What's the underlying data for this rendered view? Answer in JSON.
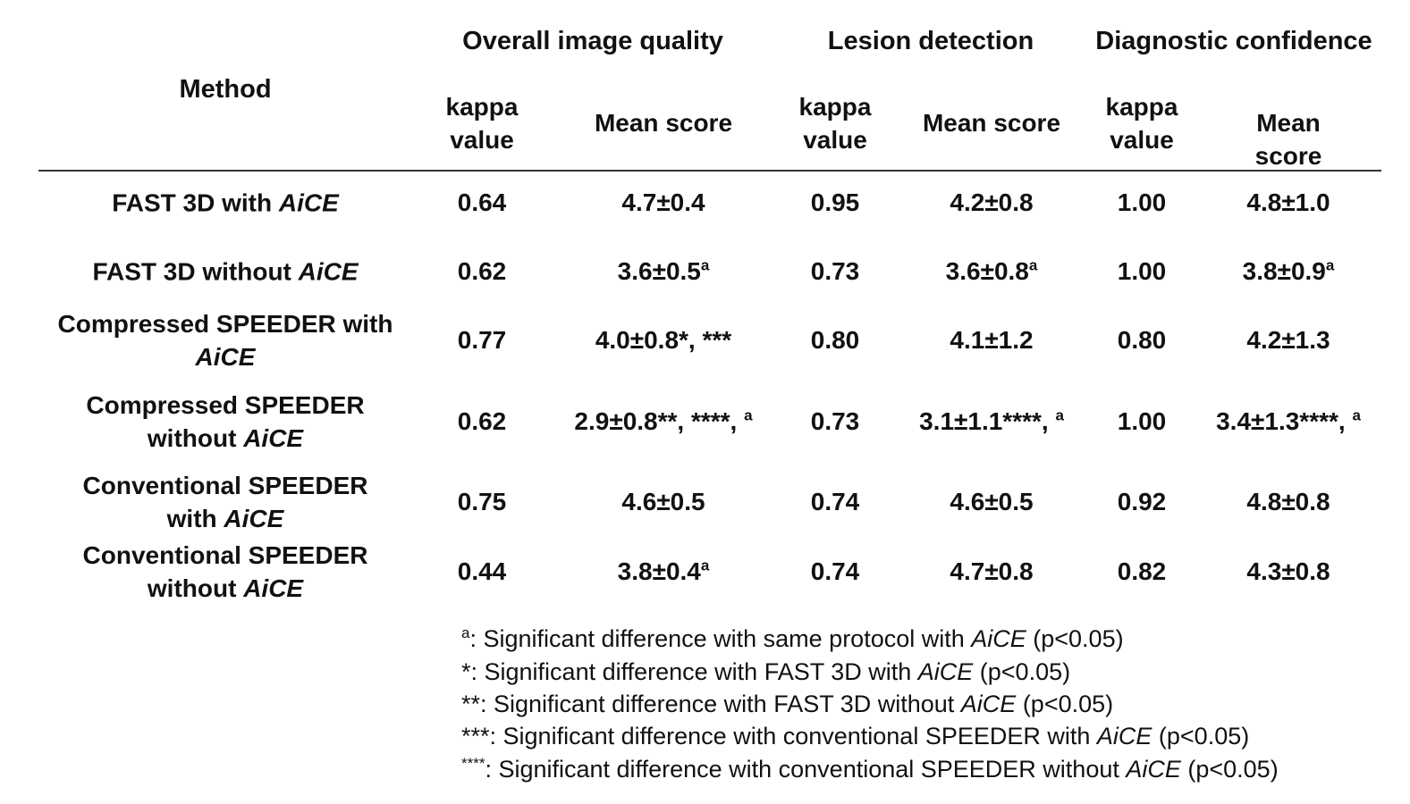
{
  "header": {
    "method": "Method",
    "groups": [
      "Overall image quality",
      "Lesion detection",
      "Diagnostic confidence"
    ],
    "kappa_line1": "kappa",
    "kappa_line2": "value",
    "mean": "Mean score"
  },
  "rows": [
    {
      "m1": "FAST 3D with ",
      "m1i": "AiCE",
      "m2": "",
      "m2i": "",
      "k1": "0.64",
      "s1": "4.7±0.4",
      "s1s": "",
      "k2": "0.95",
      "s2": "4.2±0.8",
      "s2s": "",
      "k3": "1.00",
      "s3": "4.8±1.0",
      "s3s": ""
    },
    {
      "m1": "FAST 3D without ",
      "m1i": "AiCE",
      "m2": "",
      "m2i": "",
      "k1": "0.62",
      "s1": "3.6±0.5",
      "s1s": "a",
      "k2": "0.73",
      "s2": "3.6±0.8",
      "s2s": "a",
      "k3": "1.00",
      "s3": "3.8±0.9",
      "s3s": "a"
    },
    {
      "m1": "Compressed SPEEDER with",
      "m1i": "",
      "m2": "",
      "m2i": "AiCE",
      "k1": "0.77",
      "s1": "4.0±0.8*, ***",
      "s1s": "",
      "k2": "0.80",
      "s2": "4.1±1.2",
      "s2s": "",
      "k3": "0.80",
      "s3": "4.2±1.3",
      "s3s": ""
    },
    {
      "m1": "Compressed SPEEDER",
      "m1i": "",
      "m2": "without ",
      "m2i": "AiCE",
      "k1": "0.62",
      "s1": "2.9±0.8**, ****, ",
      "s1s": "a",
      "k2": "0.73",
      "s2": "3.1±1.1****, ",
      "s2s": "a",
      "k3": "1.00",
      "s3": "3.4±1.3****, ",
      "s3s": "a"
    },
    {
      "m1": "Conventional SPEEDER",
      "m1i": "",
      "m2": "with ",
      "m2i": "AiCE",
      "k1": "0.75",
      "s1": "4.6±0.5",
      "s1s": "",
      "k2": "0.74",
      "s2": "4.6±0.5",
      "s2s": "",
      "k3": "0.92",
      "s3": "4.8±0.8",
      "s3s": ""
    },
    {
      "m1": "Conventional SPEEDER",
      "m1i": "",
      "m2": "without ",
      "m2i": "AiCE",
      "k1": "0.44",
      "s1": "3.8±0.4",
      "s1s": "a",
      "k2": "0.74",
      "s2": "4.7±0.8",
      "s2s": "",
      "k3": "0.82",
      "s3": "4.3±0.8",
      "s3s": ""
    }
  ],
  "footnotes": [
    {
      "mark": "a",
      "text": ": Significant difference with same protocol with ",
      "em": "AiCE",
      "tail": " (p<0.05)"
    },
    {
      "mark": "*",
      "text": ":  Significant difference with  FAST 3D with ",
      "em": "AiCE",
      "tail": " (p<0.05)"
    },
    {
      "mark": "**",
      "text": ":  Significant difference with FAST 3D without ",
      "em": "AiCE",
      "tail": " (p<0.05)"
    },
    {
      "mark": "***",
      "text": ":  Significant difference with conventional SPEEDER with ",
      "em": "AiCE",
      "tail": " (p<0.05)"
    },
    {
      "mark": "****",
      "text": ": Significant difference with conventional SPEEDER without ",
      "em": "AiCE",
      "tail": " (p<0.05)"
    }
  ]
}
